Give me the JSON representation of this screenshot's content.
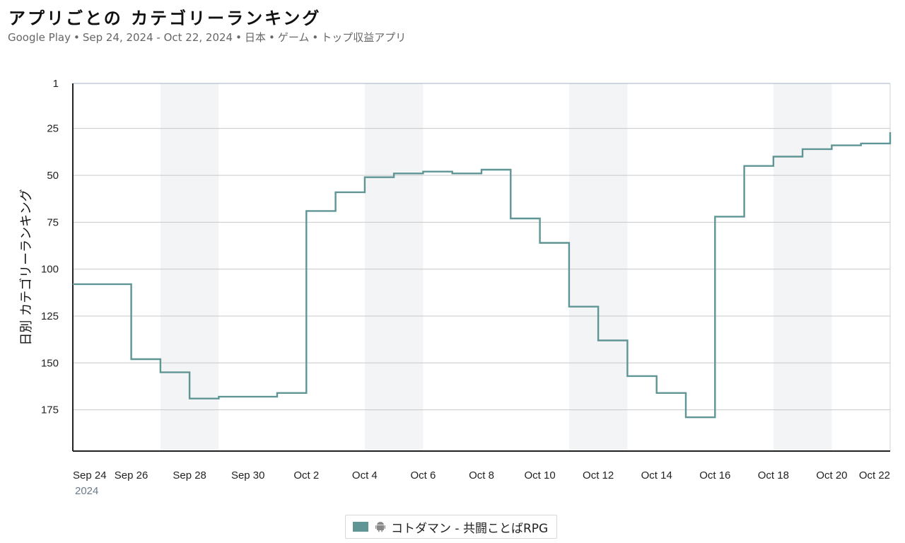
{
  "header": {
    "title": "アプリごとの カテゴリーランキング",
    "subtitle_parts": [
      "Google Play",
      "Sep 24, 2024 - Oct 22, 2024",
      "日本",
      "ゲーム",
      "トップ収益アプリ"
    ],
    "separator": "•"
  },
  "colors": {
    "series": "#5f9594",
    "weekend_band": "#f2f4f6",
    "grid": "#c8c8c8",
    "axis": "#222222"
  },
  "chart_data": {
    "type": "line",
    "step": "post",
    "title": "アプリごとの カテゴリーランキング",
    "ylabel": "日別 カテゴリーランキング",
    "xlabel": "",
    "y_reversed": true,
    "ylim": [
      1,
      197
    ],
    "y_ticks": [
      1,
      25,
      50,
      75,
      100,
      125,
      150,
      175
    ],
    "x_start": "2024-09-24",
    "x_end": "2024-10-22",
    "x_tick_labels": [
      {
        "date": "2024-09-24",
        "label": "Sep 24"
      },
      {
        "date": "2024-09-26",
        "label": "Sep 26"
      },
      {
        "date": "2024-09-28",
        "label": "Sep 28"
      },
      {
        "date": "2024-09-30",
        "label": "Sep 30"
      },
      {
        "date": "2024-10-02",
        "label": "Oct 2"
      },
      {
        "date": "2024-10-04",
        "label": "Oct 4"
      },
      {
        "date": "2024-10-06",
        "label": "Oct 6"
      },
      {
        "date": "2024-10-08",
        "label": "Oct 8"
      },
      {
        "date": "2024-10-10",
        "label": "Oct 10"
      },
      {
        "date": "2024-10-12",
        "label": "Oct 12"
      },
      {
        "date": "2024-10-14",
        "label": "Oct 14"
      },
      {
        "date": "2024-10-16",
        "label": "Oct 16"
      },
      {
        "date": "2024-10-18",
        "label": "Oct 18"
      },
      {
        "date": "2024-10-20",
        "label": "Oct 20"
      },
      {
        "date": "2024-10-22",
        "label": "Oct 22"
      }
    ],
    "year_label": "2024",
    "weekend_bands": [
      [
        "2024-09-27",
        "2024-09-29"
      ],
      [
        "2024-10-04",
        "2024-10-06"
      ],
      [
        "2024-10-11",
        "2024-10-13"
      ],
      [
        "2024-10-18",
        "2024-10-20"
      ]
    ],
    "grid": true,
    "legend_position": "bottom-center",
    "series": [
      {
        "name": "コトダマン - 共闘ことばRPG",
        "platform_icon": "android-icon",
        "x": [
          "2024-09-24",
          "2024-09-25",
          "2024-09-26",
          "2024-09-27",
          "2024-09-28",
          "2024-09-29",
          "2024-09-30",
          "2024-10-01",
          "2024-10-02",
          "2024-10-03",
          "2024-10-04",
          "2024-10-05",
          "2024-10-06",
          "2024-10-07",
          "2024-10-08",
          "2024-10-09",
          "2024-10-10",
          "2024-10-11",
          "2024-10-12",
          "2024-10-13",
          "2024-10-14",
          "2024-10-15",
          "2024-10-16",
          "2024-10-17",
          "2024-10-18",
          "2024-10-19",
          "2024-10-20",
          "2024-10-21",
          "2024-10-22"
        ],
        "values": [
          108,
          108,
          148,
          155,
          169,
          168,
          168,
          166,
          69,
          59,
          51,
          49,
          48,
          49,
          47,
          73,
          86,
          120,
          138,
          157,
          166,
          179,
          72,
          45,
          40,
          36,
          34,
          33,
          27
        ]
      }
    ]
  }
}
